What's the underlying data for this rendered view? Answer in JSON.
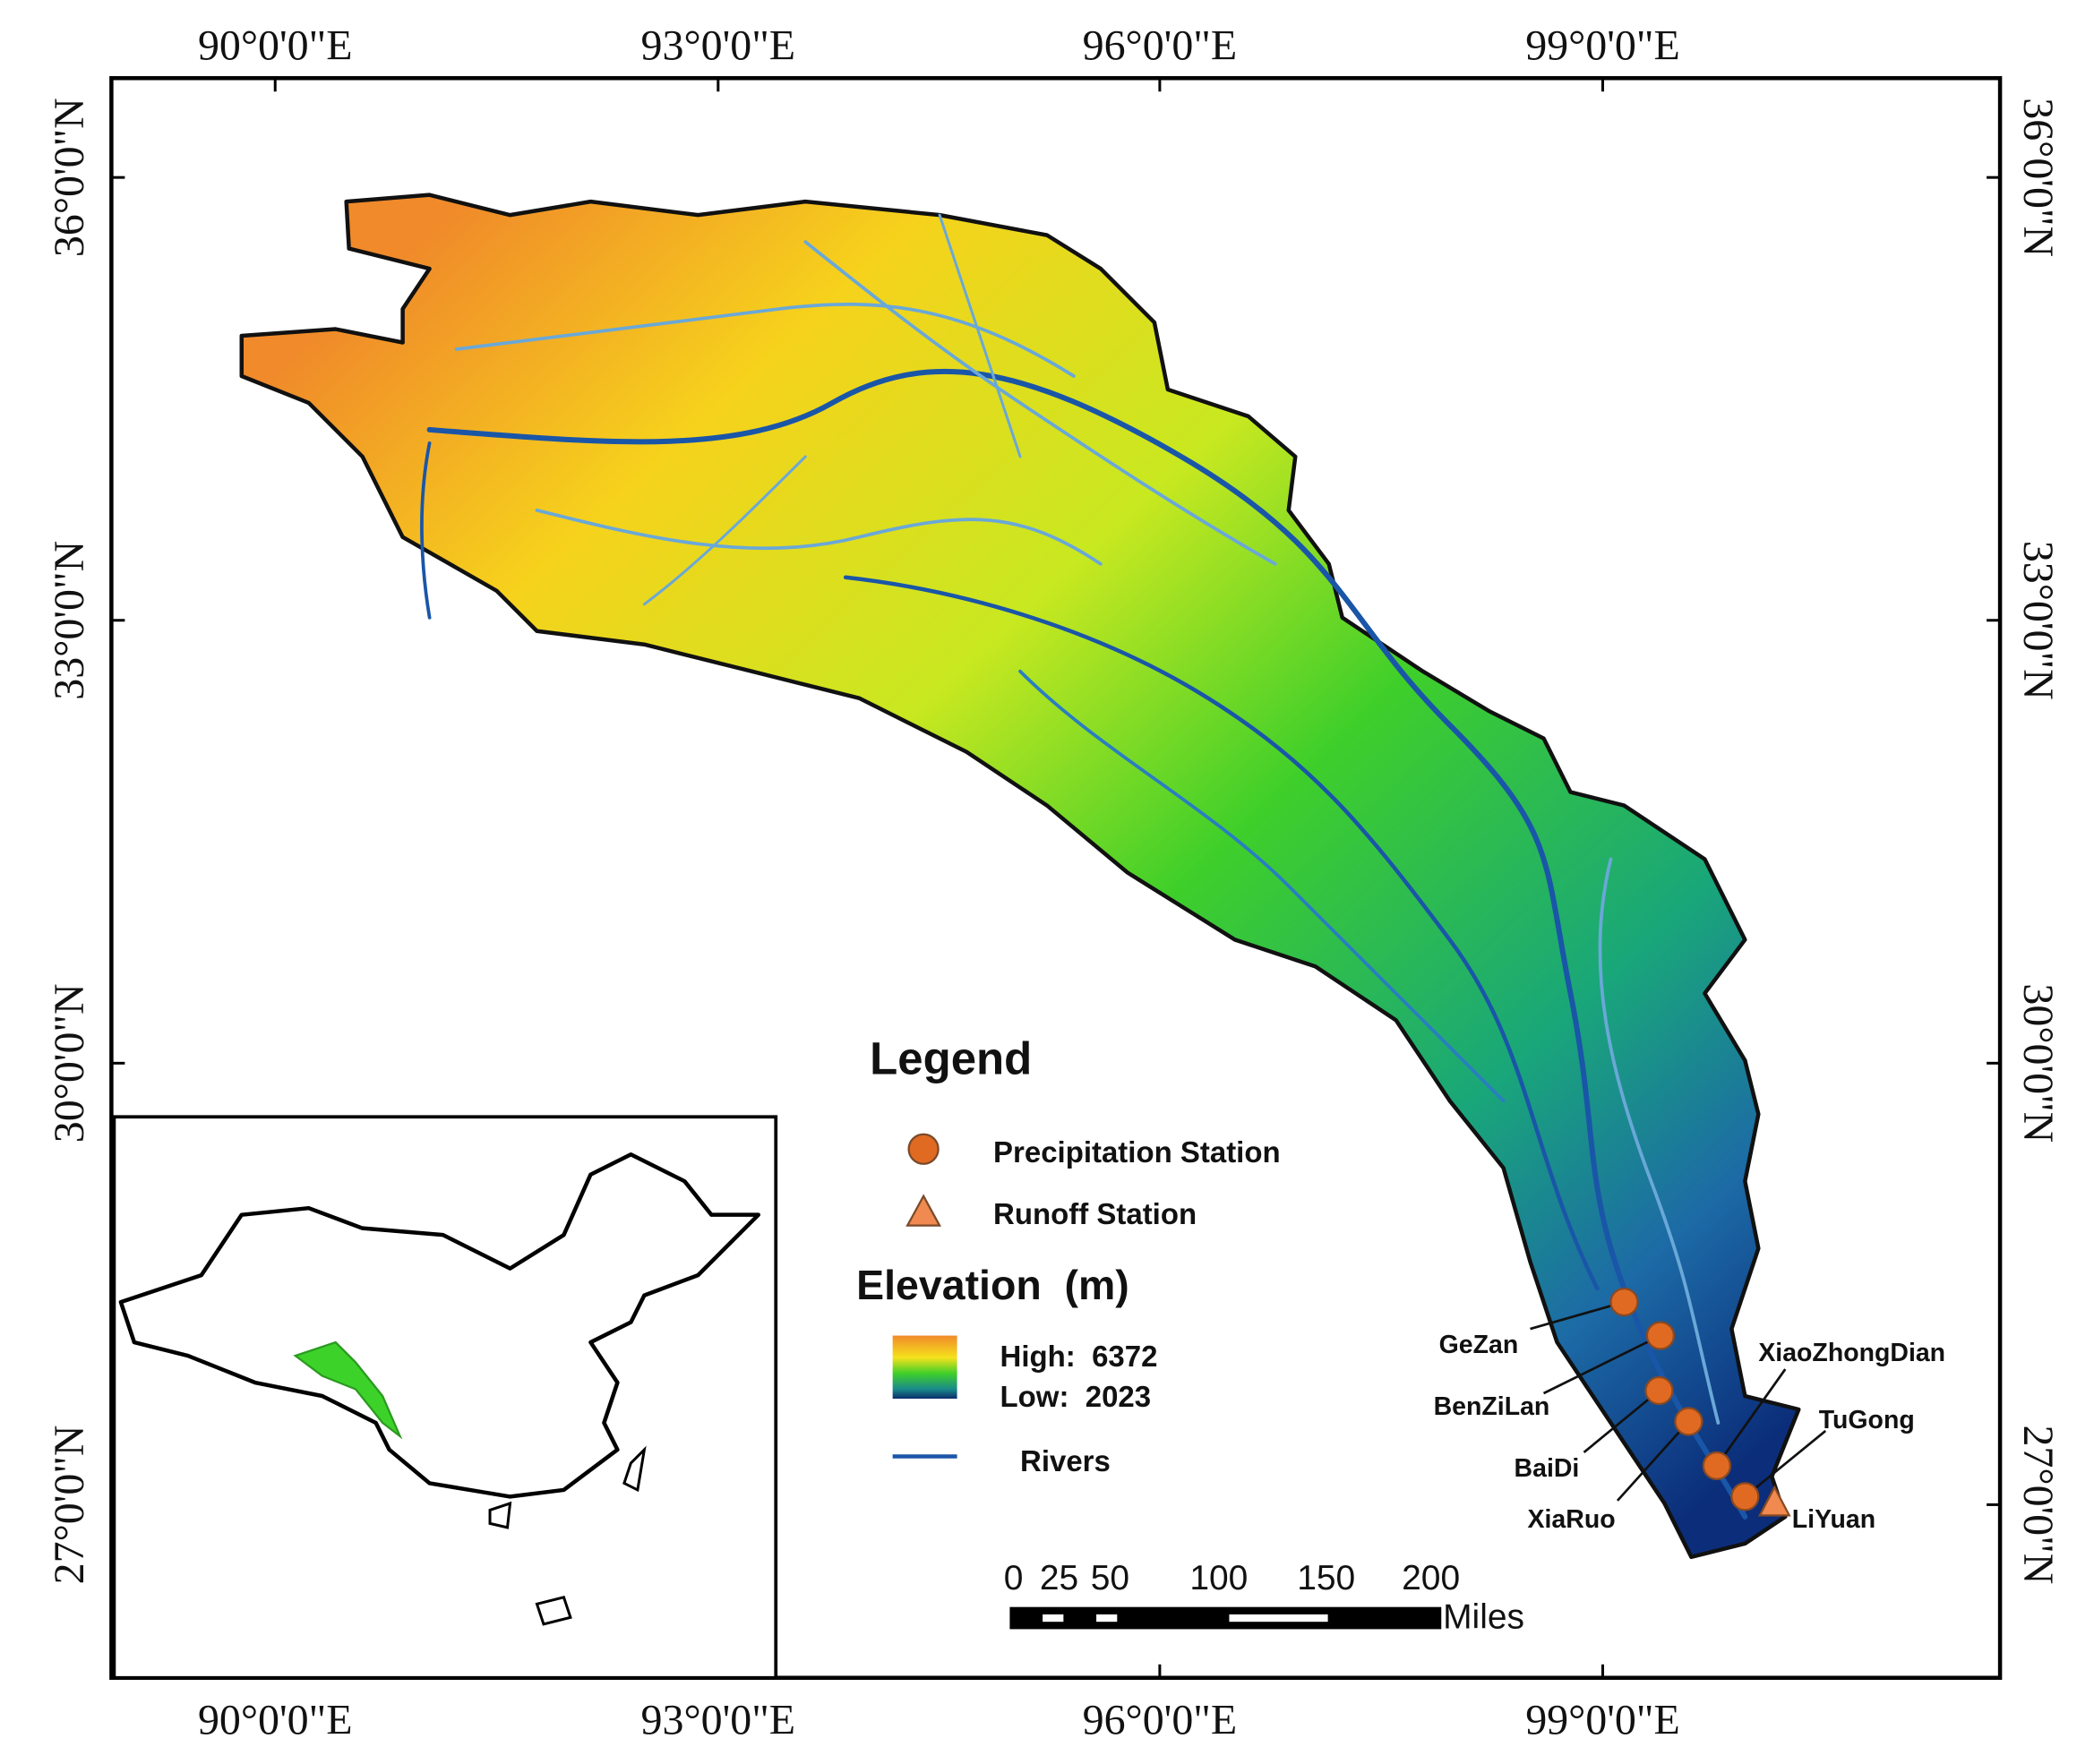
{
  "map": {
    "longitude_labels_top": [
      "90°0'0\"E",
      "93°0'0\"E",
      "96°0'0\"E",
      "99°0'0\"E"
    ],
    "longitude_labels_bottom": [
      "90°0'0\"E",
      "93°0'0\"E",
      "96°0'0\"E",
      "99°0'0\"E"
    ],
    "latitude_labels_left": [
      "36°0'0\"N",
      "33°0'0\"N",
      "30°0'0\"N",
      "27°0'0\"N"
    ],
    "latitude_labels_right": [
      "36°0'0\"N",
      "33°0'0\"N",
      "30°0'0\"N",
      "27°0'0\"N"
    ],
    "legend": {
      "title": "Legend",
      "items": [
        "Precipitation Station",
        "Runoff Station"
      ],
      "elevation_title": "Elevation  (m)",
      "high": "High:  6372",
      "low": "Low:  2023",
      "rivers": "Rivers"
    },
    "stations": [
      "GeZan",
      "BenZiLan",
      "BaiDi",
      "XiaRuo",
      "XiaoZhongDian",
      "TuGong",
      "LiYuan"
    ],
    "scale": {
      "labels": [
        "0",
        "25",
        "50",
        "100",
        "150",
        "200"
      ],
      "unit": "Miles"
    }
  }
}
